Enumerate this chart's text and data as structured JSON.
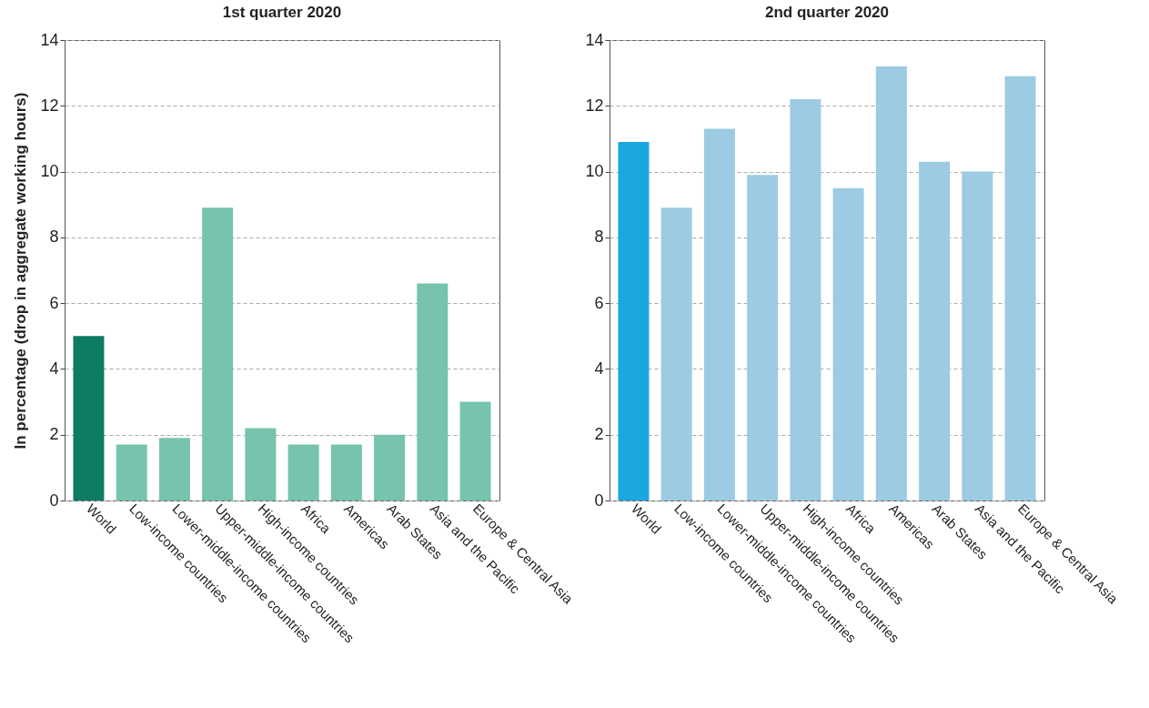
{
  "chart_data": [
    {
      "type": "bar",
      "title": "1st quarter 2020",
      "ylabel": "In percentage (drop in aggregate working hours)",
      "categories": [
        "World",
        "Low-income countries",
        "Lower-middle-income countries",
        "Upper-middle-income countries",
        "High-income countries",
        "Africa",
        "Americas",
        "Arab States",
        "Asia and the Pacific",
        "Europe & Central Asia"
      ],
      "values": [
        5.0,
        1.7,
        1.9,
        8.9,
        2.2,
        1.7,
        1.7,
        2.0,
        6.6,
        3.0
      ],
      "colors": [
        "#0e7b63",
        "#76c3ae",
        "#76c3ae",
        "#76c3ae",
        "#76c3ae",
        "#76c3ae",
        "#76c3ae",
        "#76c3ae",
        "#76c3ae",
        "#76c3ae"
      ],
      "ylim": [
        0,
        14
      ],
      "yticks": [
        0,
        2,
        4,
        6,
        8,
        10,
        12,
        14
      ],
      "grid": "y"
    },
    {
      "type": "bar",
      "title": "2nd quarter 2020",
      "categories": [
        "World",
        "Low-income countries",
        "Lower-middle-income countries",
        "Upper-middle-income countries",
        "High-income countries",
        "Africa",
        "Americas",
        "Arab States",
        "Asia and the Pacific",
        "Europe & Central Asia"
      ],
      "values": [
        10.9,
        8.9,
        11.3,
        9.9,
        12.2,
        9.5,
        13.2,
        10.3,
        10.0,
        12.9
      ],
      "colors": [
        "#1aa7e0",
        "#9ccbe3",
        "#9ccbe3",
        "#9ccbe3",
        "#9ccbe3",
        "#9ccbe3",
        "#9ccbe3",
        "#9ccbe3",
        "#9ccbe3",
        "#9ccbe3"
      ],
      "ylim": [
        0,
        14
      ],
      "yticks": [
        0,
        2,
        4,
        6,
        8,
        10,
        12,
        14
      ],
      "grid": "y"
    }
  ]
}
